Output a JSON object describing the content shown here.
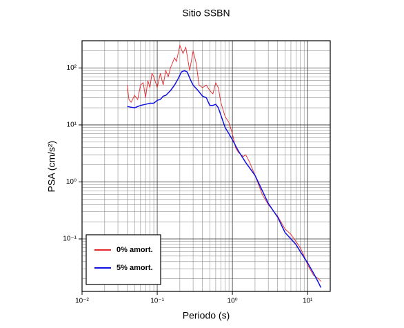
{
  "chart_data": {
    "type": "line",
    "title": "Sitio SSBN",
    "x_label": "Periodo (s)",
    "y_label": "PSA (cm/s²)",
    "log_x": true,
    "log_y": true,
    "grid": true,
    "legend_position": "lower left",
    "xlim": [
      0.01,
      20
    ],
    "ylim": [
      0.012,
      300
    ],
    "xticks": [
      {
        "value": 0.01,
        "label": "10⁻²"
      },
      {
        "value": 0.1,
        "label": "10⁻¹"
      },
      {
        "value": 1,
        "label": "10⁰"
      },
      {
        "value": 10,
        "label": "10¹"
      }
    ],
    "yticks": [
      {
        "value": 0.1,
        "label": "10⁻¹"
      },
      {
        "value": 1,
        "label": "10⁰"
      },
      {
        "value": 10,
        "label": "10¹"
      },
      {
        "value": 100,
        "label": "10²"
      }
    ],
    "series": [
      {
        "name": "0% amort.",
        "color": "#e8262a",
        "x": [
          0.04,
          0.042,
          0.045,
          0.05,
          0.055,
          0.06,
          0.065,
          0.07,
          0.075,
          0.08,
          0.085,
          0.09,
          0.1,
          0.11,
          0.12,
          0.13,
          0.14,
          0.15,
          0.17,
          0.18,
          0.2,
          0.22,
          0.24,
          0.27,
          0.3,
          0.33,
          0.36,
          0.4,
          0.45,
          0.5,
          0.55,
          0.6,
          0.65,
          0.7,
          0.8,
          0.9,
          1.0,
          1.1,
          1.2,
          1.3,
          1.4,
          1.5,
          1.7,
          2,
          2.5,
          3,
          4,
          5,
          6,
          7,
          8,
          9,
          10,
          12,
          14,
          15
        ],
        "values": [
          50,
          28,
          25,
          33,
          28,
          50,
          55,
          30,
          60,
          45,
          80,
          70,
          45,
          80,
          50,
          90,
          70,
          100,
          150,
          130,
          250,
          180,
          230,
          90,
          200,
          120,
          50,
          45,
          50,
          40,
          35,
          55,
          45,
          25,
          14,
          11,
          7,
          4,
          3.3,
          3,
          2.8,
          3,
          2.2,
          1.3,
          0.6,
          0.4,
          0.25,
          0.15,
          0.12,
          0.09,
          0.07,
          0.05,
          0.035,
          0.023,
          0.02,
          0.018
        ]
      },
      {
        "name": "5% amort.",
        "color": "#1010e0",
        "x": [
          0.04,
          0.05,
          0.06,
          0.07,
          0.08,
          0.09,
          0.1,
          0.11,
          0.12,
          0.13,
          0.15,
          0.17,
          0.19,
          0.21,
          0.23,
          0.25,
          0.28,
          0.3,
          0.35,
          0.4,
          0.45,
          0.5,
          0.55,
          0.6,
          0.65,
          0.7,
          0.8,
          0.9,
          1,
          1.2,
          1.5,
          2,
          2.5,
          3,
          4,
          5,
          6,
          7,
          8,
          10,
          12,
          14,
          15
        ],
        "values": [
          21,
          20,
          22,
          23,
          24,
          24,
          27,
          28,
          32,
          33,
          40,
          50,
          65,
          85,
          90,
          85,
          60,
          50,
          40,
          32,
          30,
          22,
          22,
          23,
          20,
          15,
          9,
          7,
          5.5,
          3.5,
          2.2,
          1.3,
          0.7,
          0.42,
          0.24,
          0.13,
          0.1,
          0.08,
          0.06,
          0.038,
          0.025,
          0.017,
          0.014
        ]
      }
    ]
  }
}
